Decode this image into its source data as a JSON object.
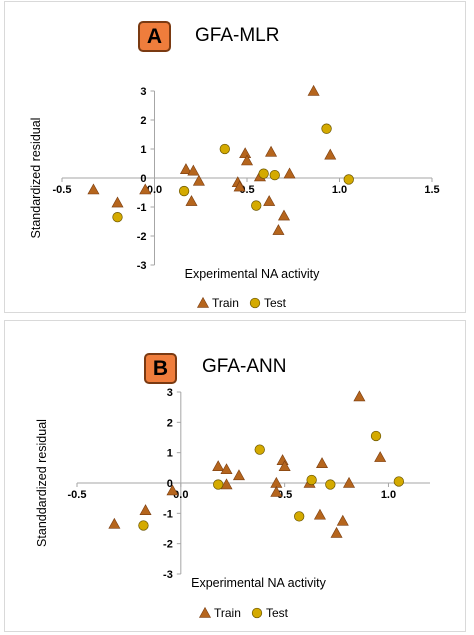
{
  "chart_data": [
    {
      "type": "scatter",
      "badge": "A",
      "title": "GFA-MLR",
      "xlabel": "Experimental  NA activity",
      "ylabel": "Standardized residual",
      "xlim": [
        -0.5,
        1.5
      ],
      "ylim": [
        -3,
        3
      ],
      "xticks": [
        {
          "v": -0.5,
          "label": "-0.5"
        },
        {
          "v": 0,
          "label": "0.0"
        },
        {
          "v": 0.5,
          "label": "0.5"
        },
        {
          "v": 1.0,
          "label": "1.0"
        },
        {
          "v": 1.5,
          "label": "1.5"
        }
      ],
      "yticks": [
        {
          "v": -3,
          "label": "-3"
        },
        {
          "v": -2,
          "label": "-2"
        },
        {
          "v": -1,
          "label": "-1"
        },
        {
          "v": 0,
          "label": "0"
        },
        {
          "v": 1,
          "label": "1"
        },
        {
          "v": 2,
          "label": "2"
        },
        {
          "v": 3,
          "label": "3"
        }
      ],
      "grid": false,
      "legend_position": "bottom",
      "colors": {
        "train": "#b5651d",
        "test": "#d4aa00"
      },
      "series": [
        {
          "name": "Train",
          "marker": "triangle",
          "points": [
            [
              -0.33,
              -0.4
            ],
            [
              -0.2,
              -0.85
            ],
            [
              -0.05,
              -0.4
            ],
            [
              0.17,
              0.3
            ],
            [
              0.2,
              -0.8
            ],
            [
              0.21,
              0.25
            ],
            [
              0.24,
              -0.1
            ],
            [
              0.45,
              -0.15
            ],
            [
              0.46,
              -0.3
            ],
            [
              0.49,
              0.85
            ],
            [
              0.5,
              0.6
            ],
            [
              0.57,
              0.05
            ],
            [
              0.62,
              -0.8
            ],
            [
              0.63,
              0.9
            ],
            [
              0.67,
              -1.8
            ],
            [
              0.7,
              -1.3
            ],
            [
              0.73,
              0.15
            ],
            [
              0.86,
              3.0
            ],
            [
              0.95,
              0.8
            ]
          ]
        },
        {
          "name": "Test",
          "marker": "circle",
          "points": [
            [
              -0.2,
              -1.35
            ],
            [
              0.16,
              -0.45
            ],
            [
              0.38,
              1.0
            ],
            [
              0.55,
              -0.95
            ],
            [
              0.59,
              0.15
            ],
            [
              0.65,
              0.1
            ],
            [
              0.93,
              1.7
            ],
            [
              1.05,
              -0.05
            ]
          ]
        }
      ]
    },
    {
      "type": "scatter",
      "badge": "B",
      "title": "GFA-ANN",
      "xlabel": "Experimental NA activity",
      "ylabel": "Standdardized residual",
      "xlim": [
        -0.5,
        1.2
      ],
      "ylim": [
        -3,
        3
      ],
      "xticks": [
        {
          "v": -0.5,
          "label": "-0.5"
        },
        {
          "v": 0,
          "label": "0.0"
        },
        {
          "v": 0.5,
          "label": "0.5"
        },
        {
          "v": 1.0,
          "label": "1.0"
        }
      ],
      "yticks": [
        {
          "v": -3,
          "label": "-3"
        },
        {
          "v": -2,
          "label": "-2"
        },
        {
          "v": -1,
          "label": "-1"
        },
        {
          "v": 0,
          "label": "0"
        },
        {
          "v": 1,
          "label": "1"
        },
        {
          "v": 2,
          "label": "2"
        },
        {
          "v": 3,
          "label": "3"
        }
      ],
      "grid": false,
      "legend_position": "bottom",
      "colors": {
        "train": "#b5651d",
        "test": "#d4aa00"
      },
      "series": [
        {
          "name": "Train",
          "marker": "triangle",
          "points": [
            [
              -0.32,
              -1.35
            ],
            [
              -0.17,
              -0.9
            ],
            [
              -0.04,
              -0.25
            ],
            [
              0.18,
              0.55
            ],
            [
              0.22,
              0.45
            ],
            [
              0.22,
              -0.05
            ],
            [
              0.28,
              0.25
            ],
            [
              0.46,
              0.0
            ],
            [
              0.46,
              -0.3
            ],
            [
              0.49,
              0.75
            ],
            [
              0.5,
              0.55
            ],
            [
              0.62,
              0.0
            ],
            [
              0.67,
              -1.05
            ],
            [
              0.68,
              0.65
            ],
            [
              0.75,
              -1.65
            ],
            [
              0.78,
              -1.25
            ],
            [
              0.81,
              0.0
            ],
            [
              0.86,
              2.85
            ],
            [
              0.96,
              0.85
            ]
          ]
        },
        {
          "name": "Test",
          "marker": "circle",
          "points": [
            [
              -0.18,
              -1.4
            ],
            [
              0.18,
              -0.05
            ],
            [
              0.38,
              1.1
            ],
            [
              0.57,
              -1.1
            ],
            [
              0.63,
              0.1
            ],
            [
              0.72,
              -0.05
            ],
            [
              0.94,
              1.55
            ],
            [
              1.05,
              0.05
            ]
          ]
        }
      ]
    }
  ]
}
